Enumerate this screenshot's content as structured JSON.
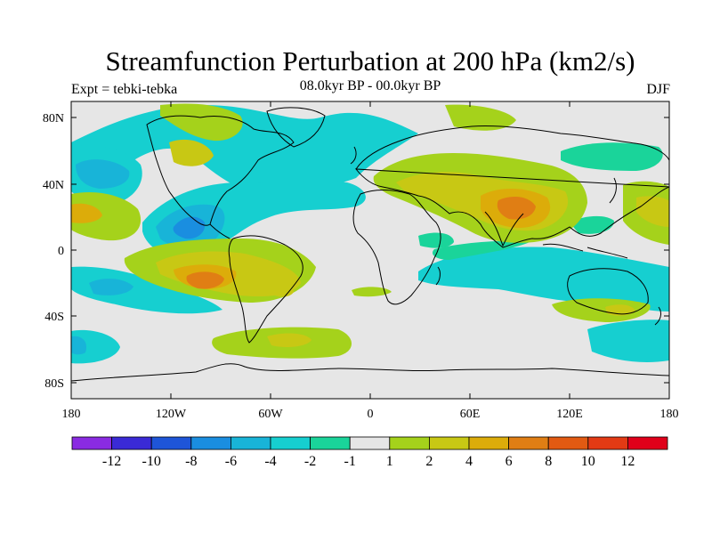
{
  "title": "Streamfunction Perturbation at 200 hPa (km2/s)",
  "subtitle_left": "Expt = tebki-tebka",
  "subtitle_center": "08.0kyr BP - 00.0kyr BP",
  "subtitle_right": "DJF",
  "lat_labels": [
    "80N",
    "40N",
    "0",
    "40S",
    "80S"
  ],
  "lon_labels": [
    "180",
    "120W",
    "60W",
    "0",
    "60E",
    "120E",
    "180"
  ],
  "colorbar": {
    "labels": [
      "-12",
      "-10",
      "-8",
      "-6",
      "-4",
      "-2",
      "-1",
      "1",
      "2",
      "4",
      "6",
      "8",
      "10",
      "12"
    ],
    "colors": [
      "#8a2be2",
      "#3a2ad6",
      "#1e55d8",
      "#1a8ee0",
      "#18b4d8",
      "#16cfd0",
      "#1ad49a",
      "#e6e6e6",
      "#a5d21b",
      "#c8c814",
      "#dcac0a",
      "#e07e14",
      "#e25a12",
      "#e33a14",
      "#e0001a"
    ]
  },
  "colors": {
    "background": "#e6e6e6",
    "coast": "#000000"
  }
}
